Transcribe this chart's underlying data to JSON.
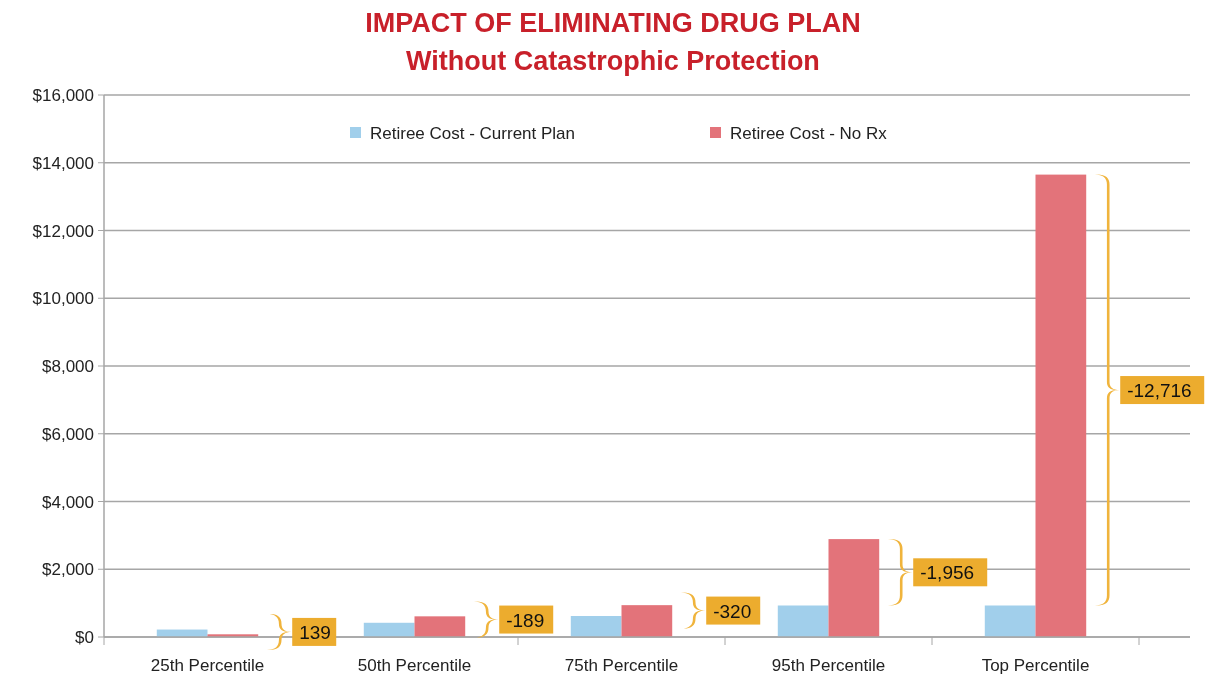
{
  "chart_data": {
    "type": "bar",
    "title": "IMPACT OF ELIMINATING DRUG PLAN",
    "subtitle": "Without Catastrophic Protection",
    "categories": [
      "25th Percentile",
      "50th Percentile",
      "75th Percentile",
      "95th Percentile",
      "Top Percentile"
    ],
    "series": [
      {
        "name": "Retiree Cost - Current Plan",
        "color": "#a1cfeb",
        "values": [
          220,
          420,
          620,
          930,
          930
        ]
      },
      {
        "name": "Retiree Cost - No Rx",
        "color": "#e3737a",
        "values": [
          80,
          610,
          940,
          2890,
          13650
        ]
      }
    ],
    "ylim": [
      0,
      16000
    ],
    "yticks": [
      {
        "value": 0,
        "label": "$0"
      },
      {
        "value": 2000,
        "label": "$2,000"
      },
      {
        "value": 4000,
        "label": "$4,000"
      },
      {
        "value": 6000,
        "label": "$6,000"
      },
      {
        "value": 8000,
        "label": "$8,000"
      },
      {
        "value": 10000,
        "label": "$10,000"
      },
      {
        "value": 12000,
        "label": "$12,000"
      },
      {
        "value": 14000,
        "label": "$14,000"
      },
      {
        "value": 16000,
        "label": "$16,000"
      }
    ],
    "grid": "y",
    "legend": "top",
    "annotations": [
      "139",
      "-189",
      "-320",
      "-1,956",
      "-12,716"
    ]
  }
}
